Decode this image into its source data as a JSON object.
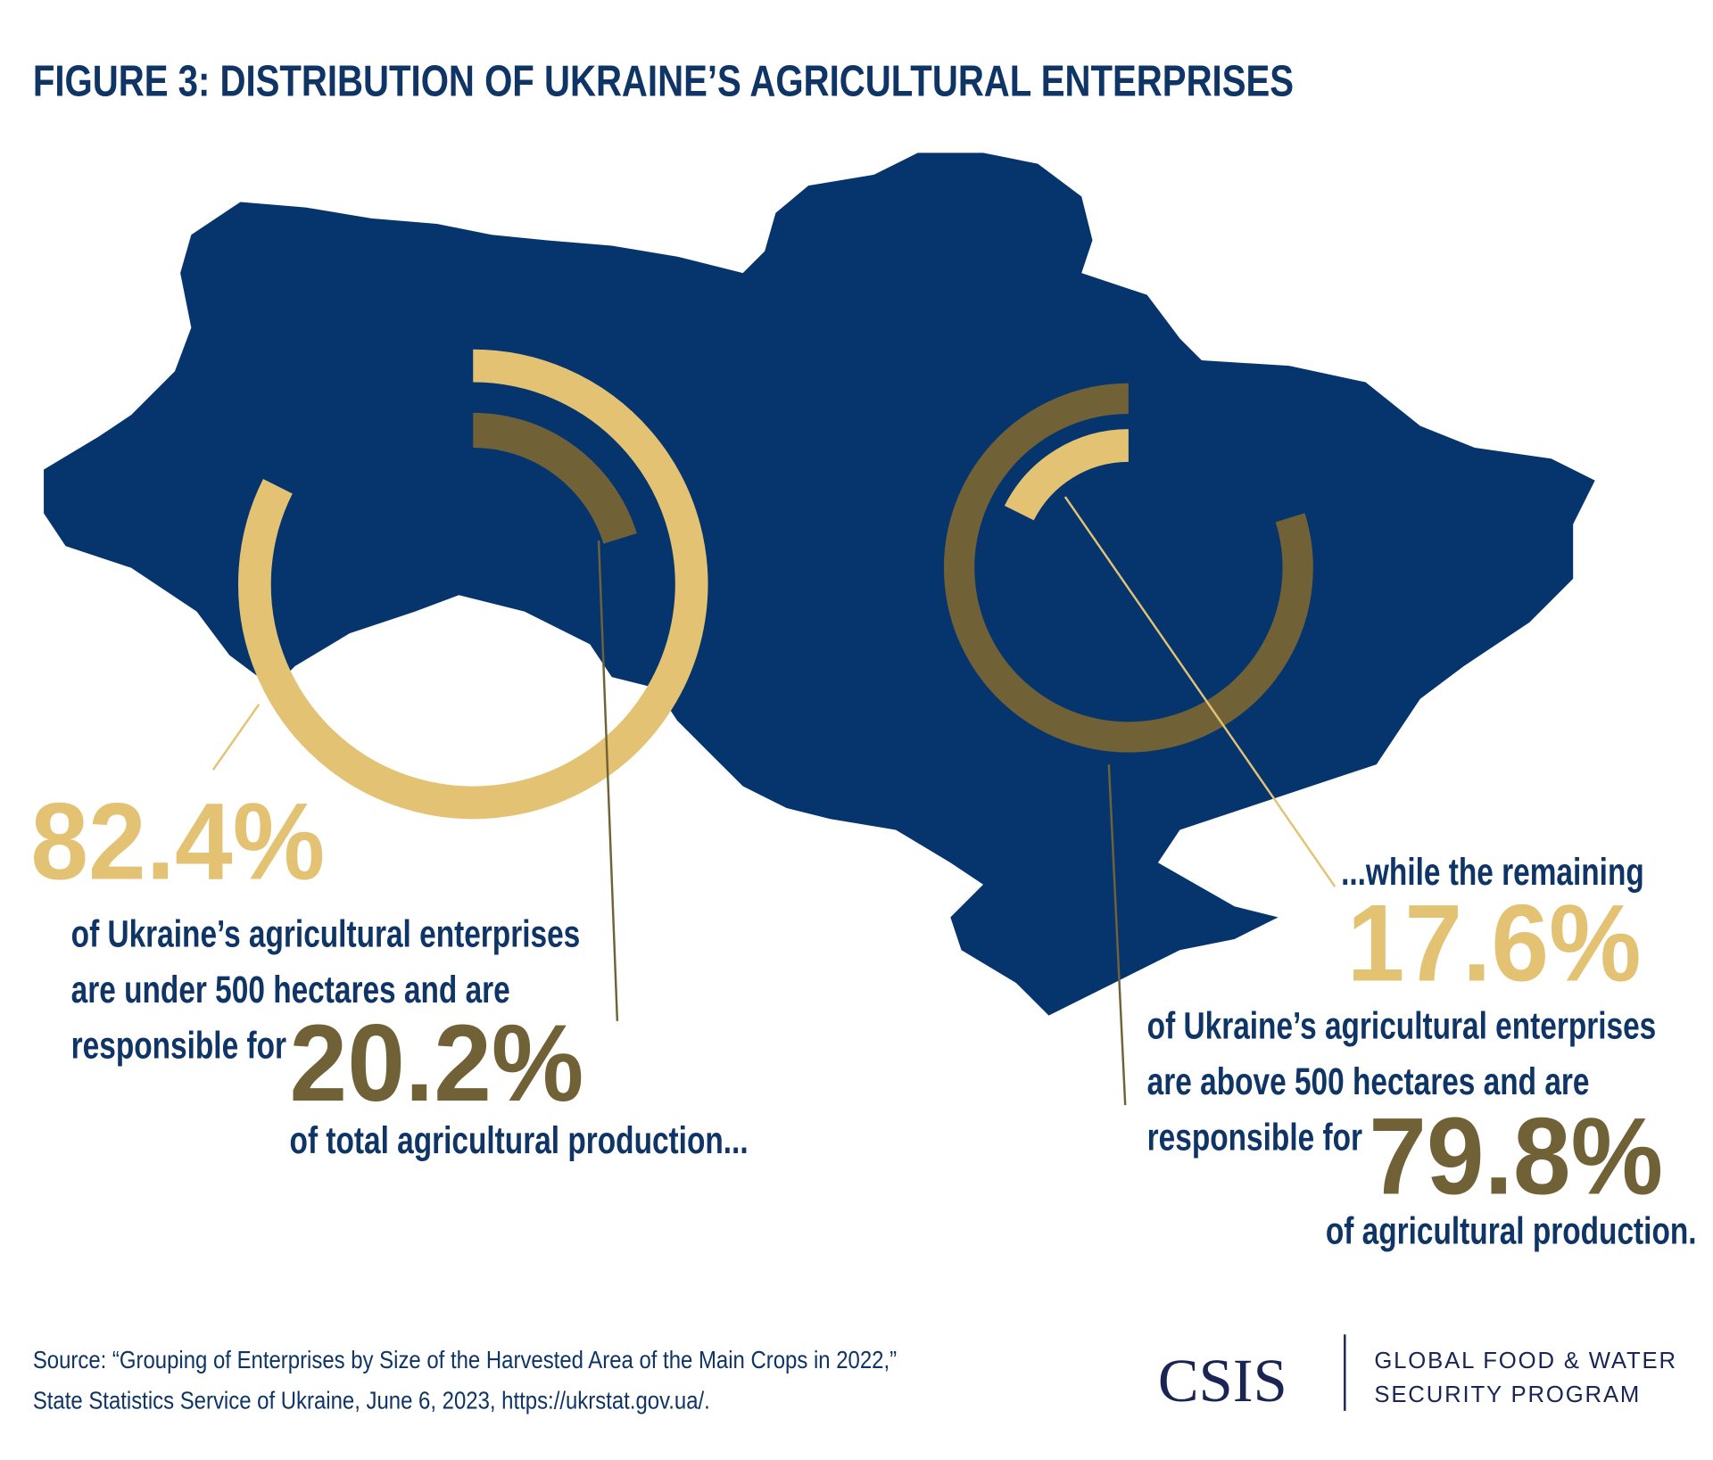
{
  "title": "FIGURE 3: DISTRIBUTION OF UKRAINE’S AGRICULTURAL ENTERPRISES",
  "chart_data": [
    {
      "type": "donut",
      "direction": "clockwise",
      "values": [
        82.4,
        20.2
      ],
      "value_labels": [
        "82.4%",
        "20.2%"
      ],
      "colors": [
        "#e3c373",
        "#706137"
      ]
    },
    {
      "type": "donut",
      "direction": "counterclockwise",
      "values": [
        79.8,
        17.6
      ],
      "value_labels": [
        "79.8%",
        "17.6%"
      ],
      "colors": [
        "#706137",
        "#e3c373"
      ]
    }
  ],
  "captions": [
    {
      "lines": [
        "of Ukraine’s agricultural enterprises",
        "are under 500 hectares and are",
        "responsible for"
      ],
      "closing": "of total agricultural production..."
    },
    {
      "opening": "...while the remaining",
      "lines": [
        "of Ukraine’s agricultural enterprises",
        "are above 500 hectares and are",
        "responsible for"
      ],
      "closing": "of agricultural production."
    }
  ],
  "source": [
    "Source: “Grouping of Enterprises by Size of the Harvested Area of the Main Crops in 2022,”",
    "State Statistics Service of Ukraine, June 6, 2023, https://ukrstat.gov.ua/."
  ],
  "logo": {
    "mark": "CSIS",
    "program": [
      "GLOBAL FOOD & WATER",
      "SECURITY PROGRAM"
    ]
  }
}
